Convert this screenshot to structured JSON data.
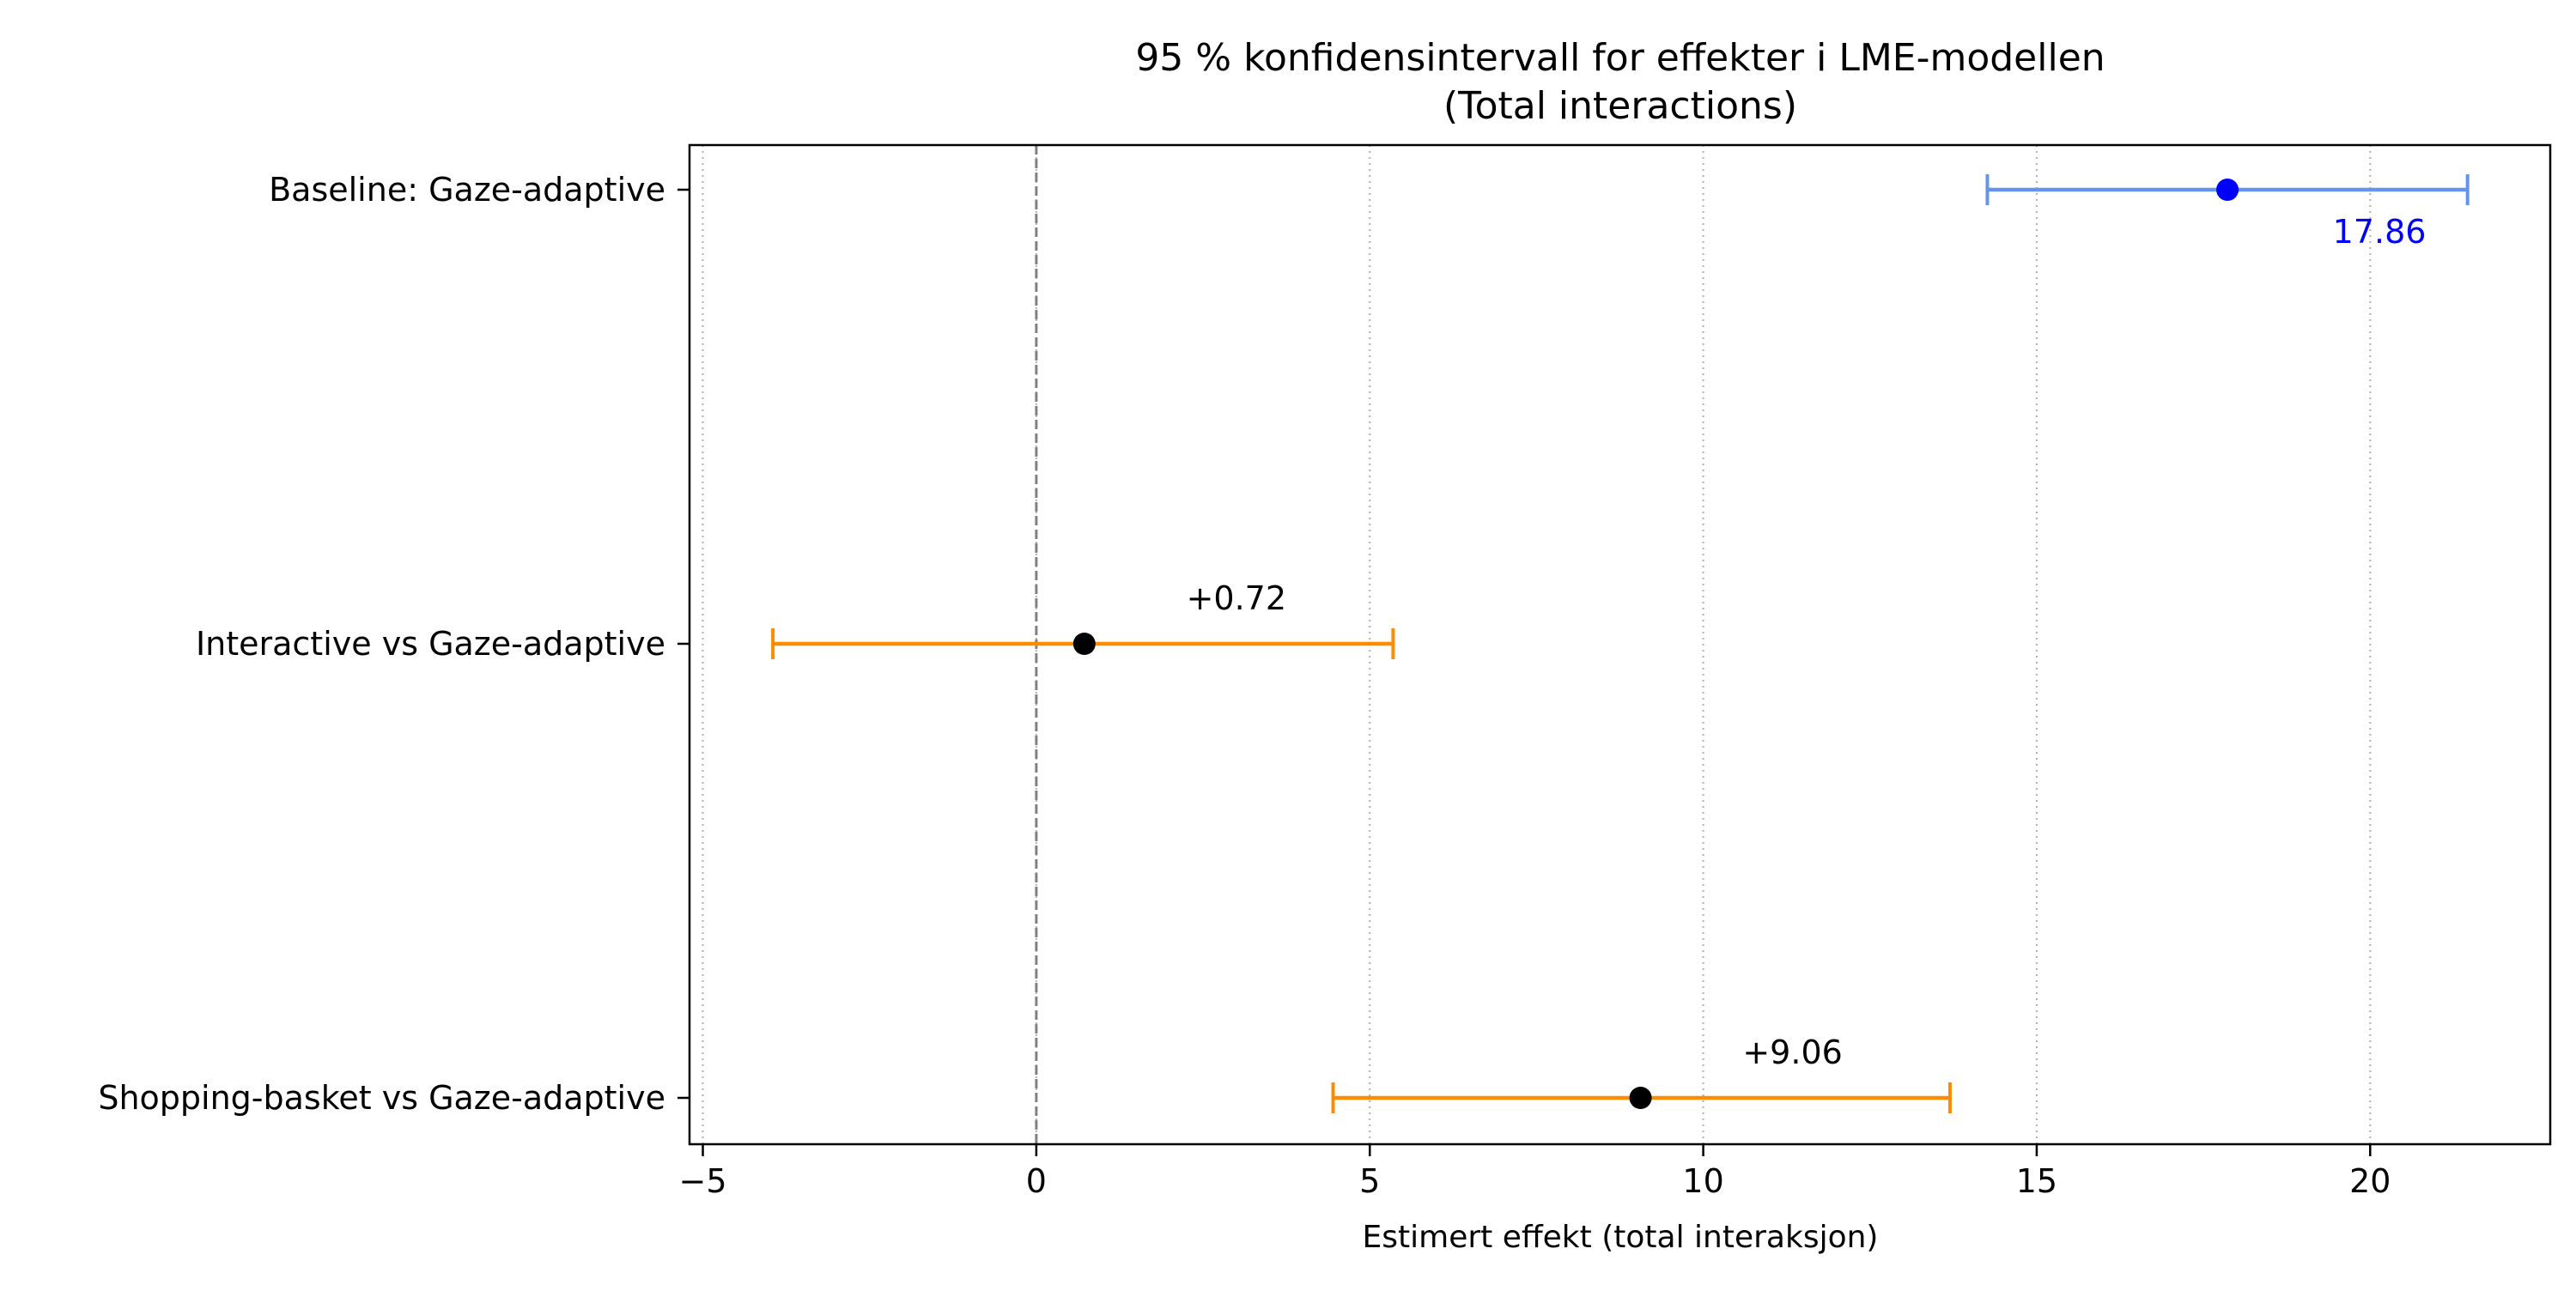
{
  "chart_data": {
    "type": "forest",
    "title": "95 % konfidensintervall for effekter i LME-modellen",
    "subtitle": "(Total interactions)",
    "xlabel": "Estimert effekt (total interaksjon)",
    "ylabel": "",
    "xlim": [
      -5.2,
      22.7
    ],
    "xticks": [
      -5,
      0,
      5,
      10,
      15,
      20
    ],
    "xtick_labels": [
      "−5",
      "0",
      "5",
      "10",
      "15",
      "20"
    ],
    "reference_line": 0,
    "grid": "x-dotted",
    "rows": [
      {
        "label": "Baseline: Gaze-adaptive",
        "estimate": 17.86,
        "ci_low": 14.26,
        "ci_high": 21.46,
        "annotation": "17.86",
        "annotation_position": "below-right",
        "point_color": "#0000ff",
        "bar_color": "#6495ed",
        "annotation_color": "#0000ff"
      },
      {
        "label": "Interactive vs Gaze-adaptive",
        "estimate": 0.72,
        "ci_low": -3.95,
        "ci_high": 5.35,
        "annotation": "+0.72",
        "annotation_position": "above-right",
        "point_color": "#000000",
        "bar_color": "#ff8c00",
        "annotation_color": "#000000"
      },
      {
        "label": "Shopping-basket vs Gaze-adaptive",
        "estimate": 9.06,
        "ci_low": 4.45,
        "ci_high": 13.7,
        "annotation": "+9.06",
        "annotation_position": "above-right",
        "point_color": "#000000",
        "bar_color": "#ff8c00",
        "annotation_color": "#000000"
      }
    ]
  }
}
